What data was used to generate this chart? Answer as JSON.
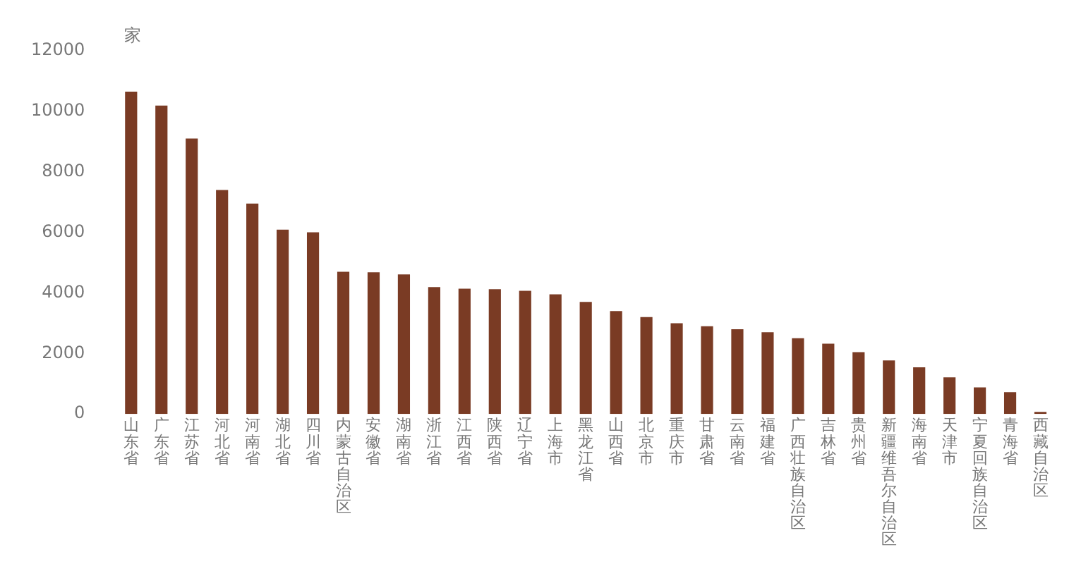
{
  "chart_data": {
    "type": "bar",
    "ylabel": "家",
    "categories": [
      "山东省",
      "广东省",
      "江苏省",
      "河北省",
      "河南省",
      "湖北省",
      "四川省",
      "内蒙古自治区",
      "安徽省",
      "湖南省",
      "浙江省",
      "江西省",
      "陕西省",
      "辽宁省",
      "上海市",
      "黑龙江省",
      "山西省",
      "北京市",
      "重庆市",
      "甘肃省",
      "云南省",
      "福建省",
      "广西壮族自治区",
      "吉林省",
      "贵州省",
      "新疆维吾尔自治区",
      "海南省",
      "天津市",
      "宁夏回族自治区",
      "青海省",
      "西藏自治区"
    ],
    "values": [
      10650,
      10190,
      9100,
      7400,
      6950,
      6090,
      6000,
      4700,
      4680,
      4610,
      4190,
      4140,
      4120,
      4070,
      3950,
      3700,
      3400,
      3200,
      3000,
      2900,
      2800,
      2700,
      2500,
      2320,
      2040,
      1770,
      1540,
      1210,
      880,
      720,
      70
    ],
    "color": "#7a3b24",
    "ylim": [
      0,
      12000
    ],
    "yticks": [
      0,
      2000,
      4000,
      6000,
      8000,
      10000,
      12000
    ],
    "grid": false
  }
}
